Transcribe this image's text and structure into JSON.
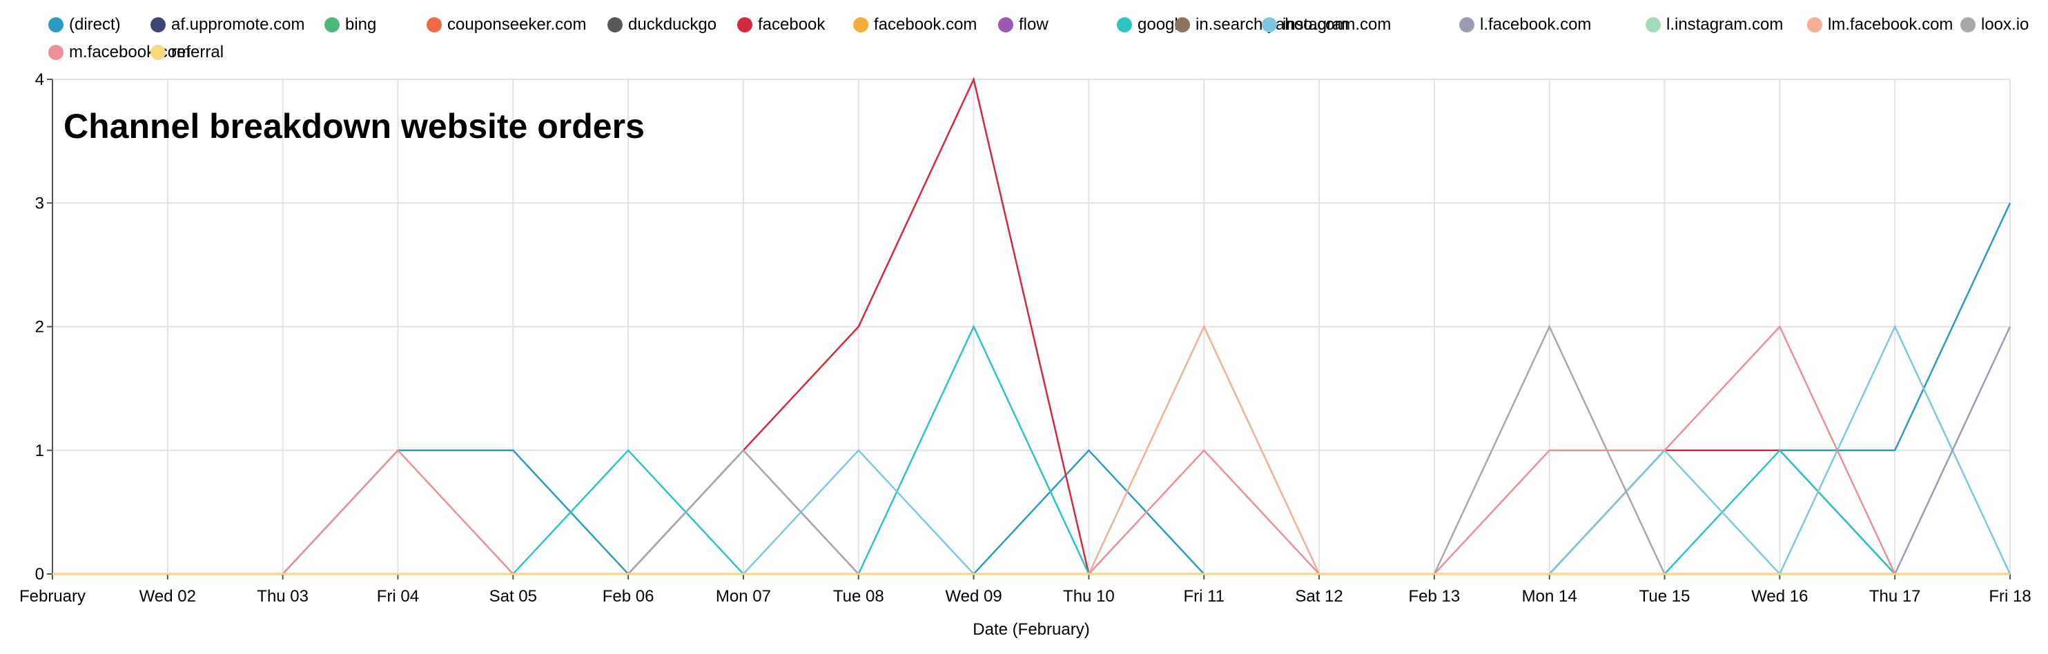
{
  "chart_data": {
    "type": "line",
    "title": "Channel breakdown website orders",
    "xlabel": "Date (February)",
    "ylabel": "",
    "ylim": [
      0,
      4
    ],
    "yticks": [
      "0",
      "1",
      "2",
      "3",
      "4"
    ],
    "categories": [
      "February",
      "Wed 02",
      "Thu 03",
      "Fri 04",
      "Sat 05",
      "Feb 06",
      "Mon 07",
      "Tue 08",
      "Wed 09",
      "Thu 10",
      "Fri 11",
      "Sat 12",
      "Feb 13",
      "Mon 14",
      "Tue 15",
      "Wed 16",
      "Thu 17",
      "Fri 18"
    ],
    "grid": true,
    "legend_position": "top",
    "series": [
      {
        "name": "(direct)",
        "color": "#2b9bc4",
        "values": [
          0,
          0,
          0,
          1,
          1,
          0,
          0,
          0,
          0,
          1,
          0,
          0,
          0,
          0,
          1,
          1,
          1,
          3
        ]
      },
      {
        "name": "af.uppromote.com",
        "color": "#3d4673",
        "values": [
          0,
          0,
          0,
          0,
          0,
          0,
          0,
          0,
          0,
          0,
          0,
          0,
          0,
          0,
          0,
          0,
          0,
          0
        ]
      },
      {
        "name": "bing",
        "color": "#4db87a",
        "values": [
          0,
          0,
          0,
          0,
          0,
          0,
          0,
          0,
          0,
          0,
          0,
          0,
          0,
          0,
          0,
          0,
          0,
          0
        ]
      },
      {
        "name": "couponseeker.com",
        "color": "#f26a45",
        "values": [
          0,
          0,
          0,
          0,
          0,
          0,
          0,
          0,
          0,
          0,
          0,
          0,
          0,
          0,
          0,
          0,
          0,
          0
        ]
      },
      {
        "name": "duckduckgo",
        "color": "#595959",
        "values": [
          0,
          0,
          0,
          0,
          0,
          0,
          0,
          0,
          0,
          0,
          0,
          0,
          0,
          0,
          0,
          0,
          0,
          0
        ]
      },
      {
        "name": "facebook",
        "color": "#d4283d",
        "values": [
          0,
          0,
          0,
          0,
          0,
          0,
          1,
          2,
          4,
          0,
          0,
          0,
          0,
          0,
          1,
          1,
          0,
          0
        ]
      },
      {
        "name": "facebook.com",
        "color": "#f5ae3c",
        "values": [
          0,
          0,
          0,
          0,
          0,
          0,
          0,
          0,
          0,
          0,
          0,
          0,
          0,
          0,
          0,
          0,
          0,
          0
        ]
      },
      {
        "name": "flow",
        "color": "#9b59b6",
        "values": [
          0,
          0,
          0,
          0,
          0,
          0,
          0,
          0,
          0,
          0,
          0,
          0,
          0,
          0,
          0,
          0,
          0,
          0
        ]
      },
      {
        "name": "google",
        "color": "#2ec4c2",
        "values": [
          0,
          0,
          0,
          0,
          0,
          1,
          0,
          0,
          2,
          0,
          0,
          0,
          0,
          0,
          0,
          1,
          0,
          0
        ]
      },
      {
        "name": "in.search.yahoo.com",
        "color": "#8c7461",
        "values": [
          0,
          0,
          0,
          0,
          0,
          0,
          0,
          0,
          0,
          0,
          0,
          0,
          0,
          0,
          0,
          0,
          0,
          0
        ]
      },
      {
        "name": "instagram.com",
        "color": "#7ec8dc",
        "values": [
          0,
          0,
          0,
          0,
          0,
          0,
          0,
          1,
          0,
          0,
          0,
          0,
          0,
          0,
          1,
          0,
          2,
          0
        ]
      },
      {
        "name": "l.facebook.com",
        "color": "#9a9db0",
        "values": [
          0,
          0,
          0,
          0,
          0,
          0,
          1,
          0,
          0,
          0,
          0,
          0,
          0,
          0,
          0,
          0,
          0,
          2
        ]
      },
      {
        "name": "l.instagram.com",
        "color": "#a2dcbd",
        "values": [
          0,
          0,
          0,
          0,
          0,
          0,
          0,
          0,
          0,
          0,
          0,
          0,
          0,
          0,
          0,
          0,
          0,
          0
        ]
      },
      {
        "name": "lm.facebook.com",
        "color": "#f5ae98",
        "values": [
          0,
          0,
          0,
          0,
          0,
          0,
          0,
          0,
          0,
          0,
          2,
          0,
          0,
          0,
          0,
          0,
          0,
          0
        ]
      },
      {
        "name": "loox.io",
        "color": "#a8a8a8",
        "values": [
          0,
          0,
          0,
          0,
          0,
          0,
          1,
          0,
          0,
          0,
          0,
          0,
          0,
          2,
          0,
          0,
          0,
          0
        ]
      },
      {
        "name": "m.facebook.com",
        "color": "#ec8f99",
        "values": [
          0,
          0,
          0,
          1,
          0,
          0,
          0,
          0,
          0,
          0,
          1,
          0,
          0,
          1,
          1,
          2,
          0,
          0
        ]
      },
      {
        "name": "referral",
        "color": "#fbd97c",
        "values": [
          0,
          0,
          0,
          0,
          0,
          0,
          0,
          0,
          0,
          0,
          0,
          0,
          0,
          0,
          0,
          0,
          0,
          0
        ]
      }
    ]
  }
}
